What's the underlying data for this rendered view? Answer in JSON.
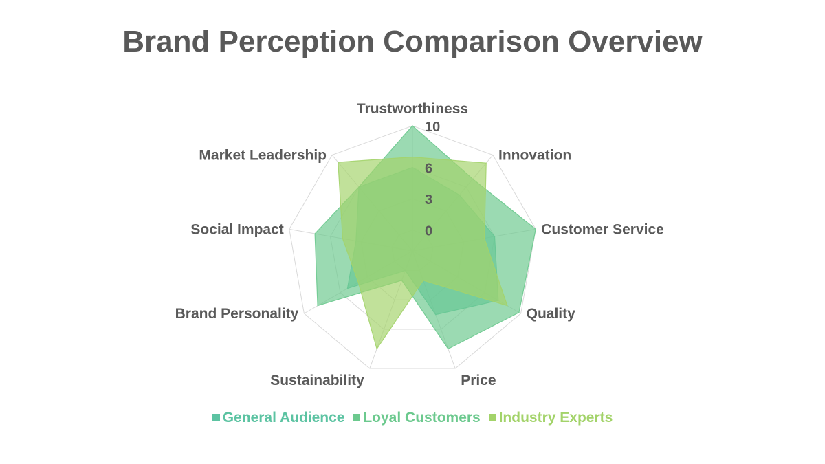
{
  "chart_data": {
    "type": "radar",
    "title": "Brand Perception Comparison Overview",
    "axes": [
      "Trustworthiness",
      "Innovation",
      "Customer Service",
      "Quality",
      "Price",
      "Sustainability",
      "Brand Personality",
      "Social Impact",
      "Market Leadership"
    ],
    "r_ticks": [
      0,
      3,
      6,
      10
    ],
    "r_range": [
      -2,
      10
    ],
    "series": [
      {
        "name": "General Audience",
        "color": "#5cc3a2",
        "values": [
          6,
          5,
          6,
          7.5,
          4.5,
          0,
          5.2,
          3.5,
          6
        ]
      },
      {
        "name": "Loyal Customers",
        "color": "#6cc98e",
        "values": [
          10,
          7,
          10,
          9.8,
          8,
          1,
          8.5,
          7.5,
          6
        ]
      },
      {
        "name": "Industry Experts",
        "color": "#a3d36a",
        "values": [
          7,
          9,
          5,
          8.5,
          1,
          8,
          4,
          4.8,
          9.1
        ]
      }
    ],
    "legend_position": "bottom",
    "grid": true
  }
}
